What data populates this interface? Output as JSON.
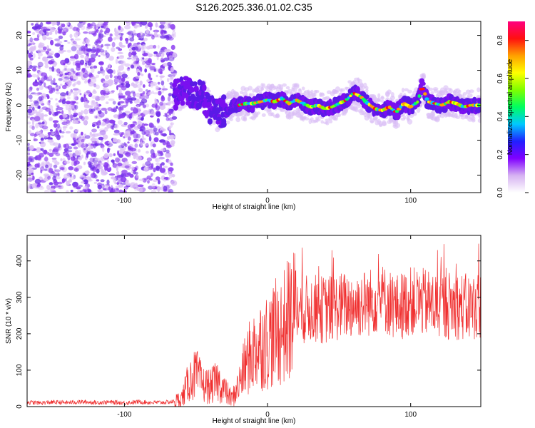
{
  "chart_data": [
    {
      "type": "heatmap",
      "title": "S126.2025.336.01.02.C35",
      "xlabel": "Height of straight line (km)",
      "ylabel": "Frequency (Hz)",
      "xlim": [
        -168,
        149
      ],
      "ylim": [
        -25,
        24
      ],
      "xticks": [
        -100,
        0,
        100
      ],
      "xtick_labels": [
        "-100",
        "0",
        "100"
      ],
      "yticks": [
        -20,
        -10,
        0,
        10,
        20
      ],
      "ytick_labels": [
        "-20",
        "-10",
        "0",
        "10",
        "20"
      ],
      "signal_onset_km": -65,
      "noise_region_km": [
        -168,
        -65
      ],
      "ridge": {
        "x": [
          -65,
          -55,
          -45,
          -40,
          -35,
          -30,
          -25,
          -20,
          -15,
          -10,
          -5,
          0,
          5,
          10,
          15,
          20,
          25,
          30,
          35,
          40,
          45,
          50,
          55,
          60,
          65,
          70,
          75,
          80,
          85,
          90,
          95,
          100,
          105,
          108,
          112,
          117,
          122,
          127,
          132,
          137,
          142,
          147
        ],
        "y": [
          3.0,
          4.0,
          2.5,
          -1.0,
          -2.5,
          -1.5,
          -0.5,
          0.0,
          0.5,
          0.5,
          1.0,
          1.5,
          1.0,
          2.0,
          0.5,
          1.5,
          0.5,
          -0.5,
          0.0,
          -1.0,
          -0.5,
          0.5,
          1.5,
          3.5,
          2.5,
          0.5,
          -1.0,
          -1.5,
          -0.5,
          -2.0,
          0.5,
          -0.5,
          1.0,
          5.5,
          1.0,
          0.5,
          0.0,
          1.0,
          0.5,
          -0.5,
          0.0,
          0.0
        ]
      },
      "colorbar": {
        "label": "Normalized spectral amplitude",
        "range": [
          0.0,
          0.9
        ],
        "ticks": [
          0.0,
          0.2,
          0.4,
          0.6,
          0.8
        ],
        "tick_labels": [
          "0.0",
          "0.2",
          "0.4",
          "0.6",
          "0.8"
        ],
        "colors": [
          "#ffffff",
          "#d6b2f2",
          "#8000ff",
          "#2020ff",
          "#00c8ff",
          "#00ff60",
          "#80ff00",
          "#ffff00",
          "#ffa000",
          "#ff1010",
          "#ff0080"
        ]
      }
    },
    {
      "type": "line",
      "xlabel": "Height of straight line (km)",
      "ylabel": "SNR (10 * v/v)",
      "xlim": [
        -168,
        149
      ],
      "ylim": [
        0,
        470
      ],
      "xticks": [
        -100,
        0,
        100
      ],
      "xtick_labels": [
        "-100",
        "0",
        "100"
      ],
      "yticks": [
        0,
        100,
        200,
        300,
        400
      ],
      "ytick_labels": [
        "0",
        "100",
        "200",
        "300",
        "400"
      ],
      "color": "#f03030",
      "series": [
        {
          "name": "SNR",
          "x": [
            -168,
            -160,
            -150,
            -140,
            -130,
            -120,
            -110,
            -100,
            -90,
            -80,
            -70,
            -65,
            -60,
            -55,
            -50,
            -45,
            -40,
            -35,
            -30,
            -25,
            -20,
            -15,
            -10,
            -5,
            0,
            5,
            10,
            15,
            20,
            25,
            30,
            40,
            50,
            60,
            70,
            80,
            90,
            100,
            110,
            120,
            130,
            140,
            149
          ],
          "values": [
            12,
            10,
            12,
            11,
            13,
            11,
            12,
            10,
            13,
            11,
            12,
            14,
            22,
            70,
            90,
            60,
            55,
            70,
            45,
            20,
            60,
            120,
            150,
            170,
            180,
            200,
            210,
            240,
            260,
            265,
            270,
            265,
            275,
            280,
            285,
            300,
            270,
            290,
            285,
            275,
            280,
            270,
            280
          ]
        }
      ]
    }
  ]
}
